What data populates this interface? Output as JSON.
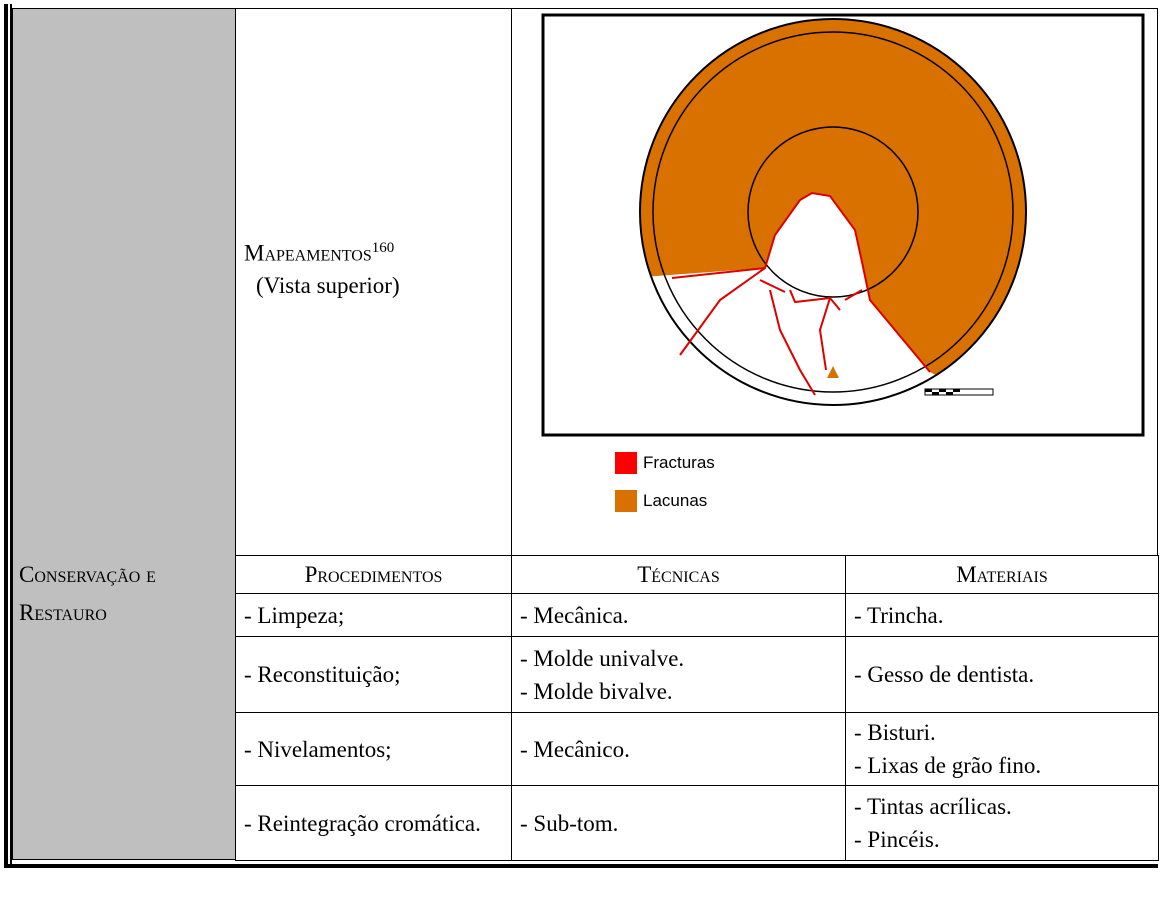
{
  "row_header": "Conservação e Restauro",
  "mapping": {
    "title": "Mapeamentos",
    "note": "160",
    "subtitle": "(Vista superior)",
    "legend": [
      "Fracturas",
      "Lacunas"
    ]
  },
  "table": {
    "headers": [
      "Procedimentos",
      "Técnicas",
      "Materiais"
    ],
    "rows": [
      [
        [
          "- Limpeza;"
        ],
        [
          "- Mecânica."
        ],
        [
          "- Trincha."
        ]
      ],
      [
        [
          "- Reconstituição;"
        ],
        [
          "- Molde univalve.",
          "- Molde bivalve."
        ],
        [
          "- Gesso de dentista."
        ]
      ],
      [
        [
          "- Nivelamentos;"
        ],
        [
          "- Mecânico."
        ],
        [
          "- Bisturi.",
          "- Lixas de grão fino."
        ]
      ],
      [
        [
          "- Reintegração cromática."
        ],
        [
          "- Sub-tom."
        ],
        [
          "- Tintas acrílicas.",
          "- Pincéis."
        ]
      ]
    ]
  }
}
